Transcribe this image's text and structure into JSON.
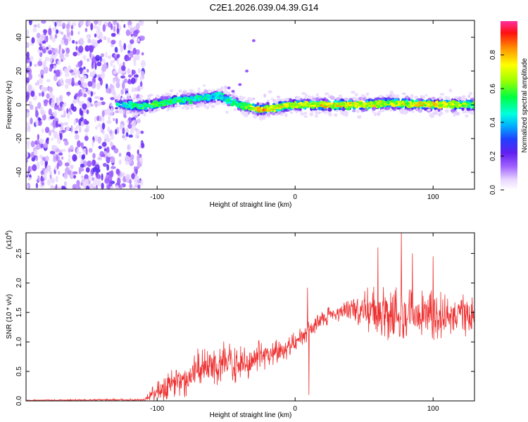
{
  "title": "C2E1.2026.039.04.39.G14",
  "colors": {
    "axis": "#000000",
    "snr_line": "#ee3030",
    "background": "#ffffff"
  },
  "chart_data": [
    {
      "type": "heatmap",
      "name": "spectrogram",
      "xlabel": "Height of straight line (km)",
      "ylabel": "Frequency (Hz)",
      "xlim": [
        -195,
        130
      ],
      "ylim": [
        -50,
        50
      ],
      "x_ticks": [
        -100,
        0,
        100
      ],
      "x_tick_labels": [
        "-100",
        "0",
        "100"
      ],
      "y_ticks": [
        -40,
        -20,
        0,
        20,
        40
      ],
      "y_tick_labels": [
        "-40",
        "-20",
        "0",
        "20",
        "40"
      ],
      "colorbar": {
        "label": "Normalized spectral amplitude",
        "range": [
          0,
          1
        ],
        "ticks": [
          0.0,
          0.2,
          0.4,
          0.6,
          0.8
        ],
        "tick_labels": [
          "0.0",
          "0.2",
          "0.4",
          "0.6",
          "0.8"
        ]
      },
      "noise_region_x": [
        -195,
        -110
      ],
      "signal_ridge": [
        {
          "x": -125,
          "f": 0,
          "amp": 0.45
        },
        {
          "x": -110,
          "f": -1,
          "amp": 0.6
        },
        {
          "x": -90,
          "f": 2,
          "amp": 0.55
        },
        {
          "x": -70,
          "f": 4,
          "amp": 0.5
        },
        {
          "x": -55,
          "f": 5,
          "amp": 0.45
        },
        {
          "x": -40,
          "f": 0,
          "amp": 0.55
        },
        {
          "x": -25,
          "f": -3,
          "amp": 0.85
        },
        {
          "x": -10,
          "f": -1,
          "amp": 0.75
        },
        {
          "x": 0,
          "f": 0,
          "amp": 0.7
        },
        {
          "x": 20,
          "f": 0,
          "amp": 0.8
        },
        {
          "x": 50,
          "f": 0,
          "amp": 0.75
        },
        {
          "x": 70,
          "f": 1,
          "amp": 0.7
        },
        {
          "x": 100,
          "f": 0,
          "amp": 0.8
        },
        {
          "x": 130,
          "f": 0,
          "amp": 0.6
        }
      ]
    },
    {
      "type": "line",
      "name": "snr",
      "xlabel": "Height of straight line (km)",
      "ylabel": "SNR (10 * v/v)",
      "scale_label": "(x10",
      "scale_exponent": "4",
      "scale_suffix": ")",
      "xlim": [
        -195,
        130
      ],
      "ylim": [
        0,
        2.85
      ],
      "x_ticks": [
        -100,
        0,
        100
      ],
      "x_tick_labels": [
        "-100",
        "0",
        "100"
      ],
      "y_ticks": [
        0.0,
        0.5,
        1.0,
        1.5,
        2.0,
        2.5
      ],
      "y_tick_labels": [
        "0.0",
        "0.5",
        "1.0",
        "1.5",
        "2.0",
        "2.5"
      ],
      "envelope": [
        {
          "x": -195,
          "y": 0.01
        },
        {
          "x": -110,
          "y": 0.02
        },
        {
          "x": -100,
          "y": 0.15
        },
        {
          "x": -90,
          "y": 0.3
        },
        {
          "x": -80,
          "y": 0.35
        },
        {
          "x": -70,
          "y": 0.55
        },
        {
          "x": -60,
          "y": 0.6
        },
        {
          "x": -50,
          "y": 0.65
        },
        {
          "x": -40,
          "y": 0.6
        },
        {
          "x": -30,
          "y": 0.7
        },
        {
          "x": -20,
          "y": 0.8
        },
        {
          "x": -10,
          "y": 0.85
        },
        {
          "x": 0,
          "y": 1.0
        },
        {
          "x": 10,
          "y": 1.2
        },
        {
          "x": 20,
          "y": 1.4
        },
        {
          "x": 30,
          "y": 1.5
        },
        {
          "x": 40,
          "y": 1.55
        },
        {
          "x": 50,
          "y": 1.55
        },
        {
          "x": 60,
          "y": 1.5
        },
        {
          "x": 70,
          "y": 1.5
        },
        {
          "x": 80,
          "y": 1.5
        },
        {
          "x": 90,
          "y": 1.45
        },
        {
          "x": 100,
          "y": 1.45
        },
        {
          "x": 110,
          "y": 1.45
        },
        {
          "x": 120,
          "y": 1.45
        },
        {
          "x": 130,
          "y": 1.45
        }
      ],
      "noise_amp": [
        {
          "x": -195,
          "y": 0.01
        },
        {
          "x": -110,
          "y": 0.02
        },
        {
          "x": -100,
          "y": 0.2
        },
        {
          "x": -60,
          "y": 0.4
        },
        {
          "x": -30,
          "y": 0.3
        },
        {
          "x": 0,
          "y": 0.2
        },
        {
          "x": 20,
          "y": 0.15
        },
        {
          "x": 40,
          "y": 0.2
        },
        {
          "x": 60,
          "y": 0.5
        },
        {
          "x": 90,
          "y": 0.45
        },
        {
          "x": 130,
          "y": 0.35
        }
      ],
      "peaks": [
        {
          "x": 9,
          "y": 1.92
        },
        {
          "x": 60,
          "y": 2.6
        },
        {
          "x": 77,
          "y": 2.9
        },
        {
          "x": 85,
          "y": 2.5
        },
        {
          "x": 100,
          "y": 2.45
        },
        {
          "x": 10,
          "y": 0.1
        }
      ]
    }
  ]
}
